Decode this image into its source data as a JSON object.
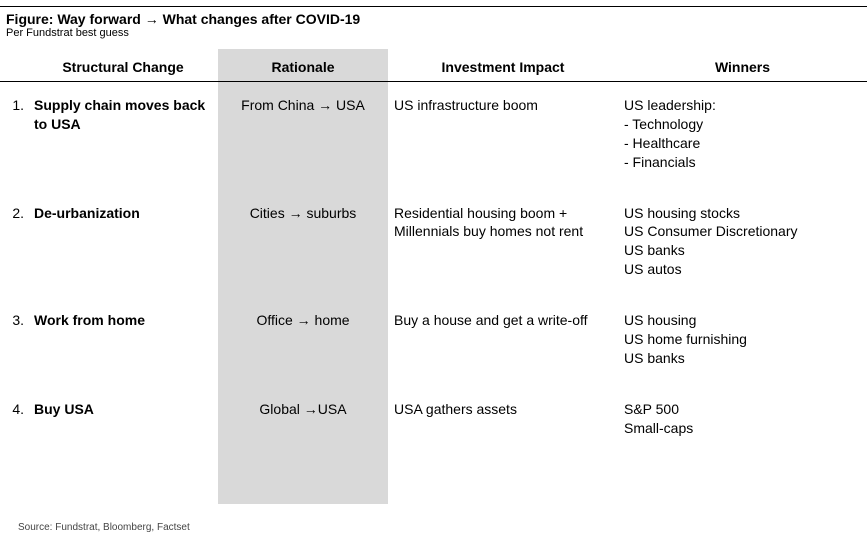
{
  "figure": {
    "title_prefix": "Figure: Way forward ",
    "title_arrow": "→",
    "title_suffix": " What changes after COVID-19",
    "subtitle": "Per Fundstrat best guess",
    "source": "Source: Fundstrat, Bloomberg, Factset",
    "colors": {
      "background": "#ffffff",
      "text": "#000000",
      "rule": "#000000",
      "rationale_bg": "#d9d9d9"
    },
    "columns": {
      "structural": "Structural Change",
      "rationale": "Rationale",
      "impact": "Investment Impact",
      "winners": "Winners"
    },
    "rows": [
      {
        "num": "1.",
        "structural": "Supply chain moves back to USA",
        "rationale_pre": "From China ",
        "rationale_arrow": "→",
        "rationale_post": " USA",
        "impact": "US infrastructure boom",
        "winners": "US leadership:\n- Technology\n- Healthcare\n- Financials"
      },
      {
        "num": "2.",
        "structural": "De-urbanization",
        "rationale_pre": "Cities ",
        "rationale_arrow": "→",
        "rationale_post": " suburbs",
        "impact": "Residential housing boom + Millennials buy homes not rent",
        "winners": "US housing stocks\nUS Consumer Discretionary\nUS banks\nUS autos"
      },
      {
        "num": "3.",
        "structural": "Work from home",
        "rationale_pre": "Office ",
        "rationale_arrow": "→",
        "rationale_post": " home",
        "impact": "Buy a house and get a write-off",
        "winners": "US housing\nUS home furnishing\nUS banks"
      },
      {
        "num": "4.",
        "structural": "Buy USA",
        "rationale_pre": "Global ",
        "rationale_arrow": "→",
        "rationale_post": "USA",
        "impact": "USA gathers assets",
        "winners": "S&P 500\nSmall-caps"
      }
    ]
  }
}
